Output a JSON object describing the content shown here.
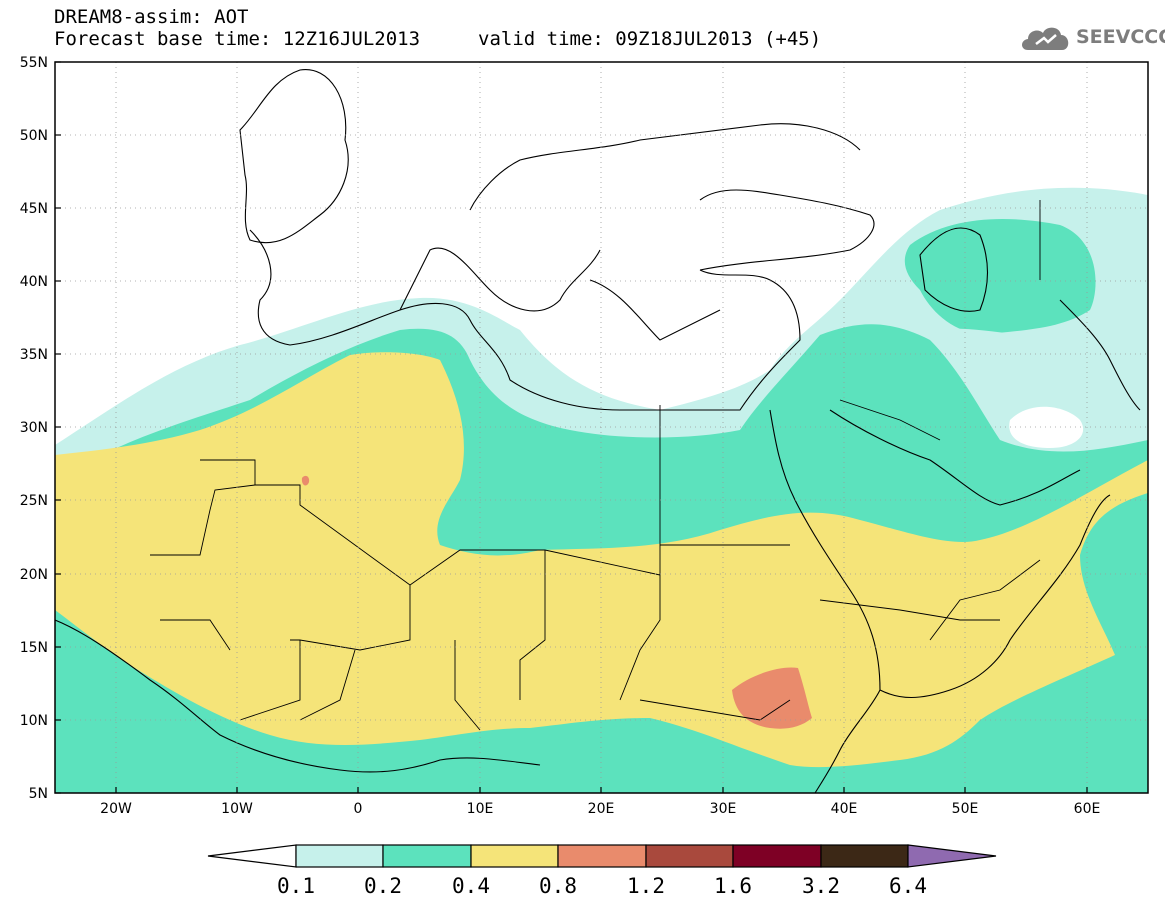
{
  "header": {
    "title": "DREAM8-assim: AOT",
    "forecast": "Forecast base time: 12Z16JUL2013",
    "valid": "valid time: 09Z18JUL2013 (+45)",
    "logo_text": "SEEVCCC",
    "logo_icon": "cloud-icon"
  },
  "map": {
    "variable": "AOT",
    "lon_range": [
      -25,
      65
    ],
    "lat_range": [
      5,
      55
    ],
    "lon_ticks": [
      "20W",
      "10W",
      "0",
      "10E",
      "20E",
      "30E",
      "40E",
      "50E",
      "60E"
    ],
    "lat_ticks": [
      "5N",
      "10N",
      "15N",
      "20N",
      "25N",
      "30N",
      "35N",
      "40N",
      "45N",
      "50N",
      "55N"
    ],
    "grid": true
  },
  "legend": {
    "levels": [
      "0.1",
      "0.2",
      "0.4",
      "0.8",
      "1.2",
      "1.6",
      "3.2",
      "6.4"
    ],
    "colors": [
      "#ffffff",
      "#c6f1eb",
      "#5ce2bd",
      "#f5e479",
      "#e98b6c",
      "#a9493d",
      "#7e0025",
      "#3c2816",
      "#8f6ab0"
    ]
  }
}
